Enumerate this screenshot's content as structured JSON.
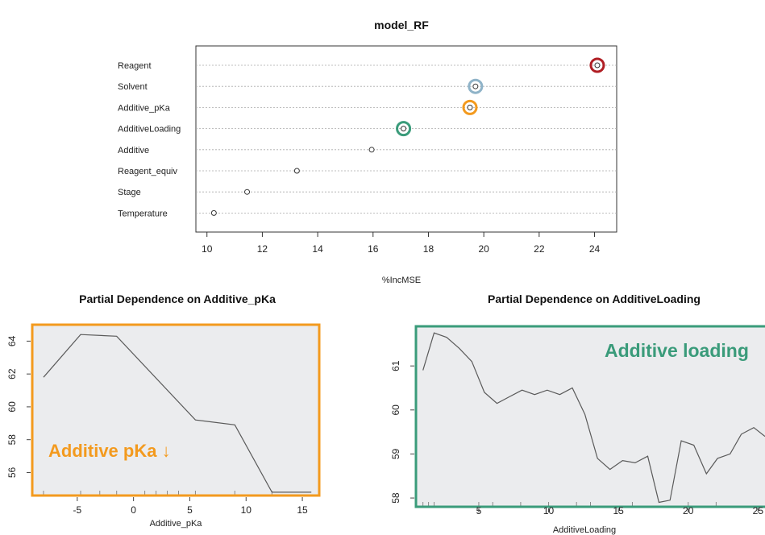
{
  "chart_data": [
    {
      "type": "scatter",
      "title": "model_RF",
      "xlabel": "%IncMSE",
      "xlim": [
        9.6,
        24.8
      ],
      "xticks": [
        10,
        12,
        14,
        16,
        18,
        20,
        22,
        24
      ],
      "categories": [
        "Reagent",
        "Solvent",
        "Additive_pKa",
        "AdditiveLoading",
        "Additive",
        "Reagent_equiv",
        "Stage",
        "Temperature"
      ],
      "values": [
        24.1,
        19.7,
        19.5,
        17.1,
        15.95,
        13.25,
        11.45,
        10.25
      ],
      "highlights": [
        {
          "category": "Reagent",
          "color": "#b01e24"
        },
        {
          "category": "Solvent",
          "color": "#8fb3c8"
        },
        {
          "category": "Additive_pKa",
          "color": "#f39a1e"
        },
        {
          "category": "AdditiveLoading",
          "color": "#3a9b7a"
        }
      ],
      "grid": true
    },
    {
      "type": "line",
      "title": "Partial Dependence on Additive_pKa",
      "xlabel": "Additive_pKa",
      "ylabel": "",
      "xlim": [
        -9,
        16.5
      ],
      "ylim": [
        54.6,
        65.0
      ],
      "xticks": [
        -5,
        0,
        5,
        10,
        15
      ],
      "yticks": [
        56,
        58,
        60,
        62,
        64
      ],
      "x": [
        -8,
        -4.7,
        -1.5,
        5.5,
        9,
        12.3,
        15.8
      ],
      "y": [
        61.8,
        64.4,
        64.3,
        59.2,
        58.9,
        54.8,
        54.8
      ],
      "rug": [
        -8,
        -4.7,
        -3,
        -1.5,
        1,
        2,
        3,
        4,
        5.5,
        9,
        12.3
      ],
      "frame_color": "#f39a1e",
      "annotation": "Additive pKa ↓",
      "annotation_color": "#f39a1e"
    },
    {
      "type": "line",
      "title": "Partial Dependence on AdditiveLoading",
      "xlabel": "AdditiveLoading",
      "ylabel": "",
      "xlim": [
        0.5,
        25.5
      ],
      "ylim": [
        57.8,
        61.9
      ],
      "xticks": [
        5,
        10,
        15,
        20,
        25
      ],
      "yticks": [
        58,
        59,
        60,
        61
      ],
      "x": [
        1,
        1.8,
        2.7,
        3.6,
        4.5,
        5.4,
        6.3,
        7.2,
        8.1,
        9.0,
        9.9,
        10.8,
        11.7,
        12.6,
        13.5,
        14.4,
        15.3,
        16.2,
        17.1,
        17.9,
        18.7,
        19.5,
        20.4,
        21.3,
        22.1,
        23.0,
        23.8,
        24.7,
        25.5
      ],
      "y": [
        60.9,
        61.75,
        61.65,
        61.4,
        61.1,
        60.4,
        60.15,
        60.3,
        60.45,
        60.35,
        60.45,
        60.35,
        60.5,
        59.9,
        58.9,
        58.65,
        58.85,
        58.8,
        58.95,
        57.9,
        57.95,
        59.3,
        59.2,
        58.55,
        58.9,
        59.0,
        59.45,
        59.6,
        59.4
      ],
      "rug": [
        1,
        1.4,
        1.8,
        5,
        6,
        8,
        10,
        12,
        13,
        16,
        20,
        22
      ],
      "frame_color": "#3a9b7a",
      "annotation": "Additive loading",
      "annotation_color": "#3a9b7a"
    }
  ]
}
